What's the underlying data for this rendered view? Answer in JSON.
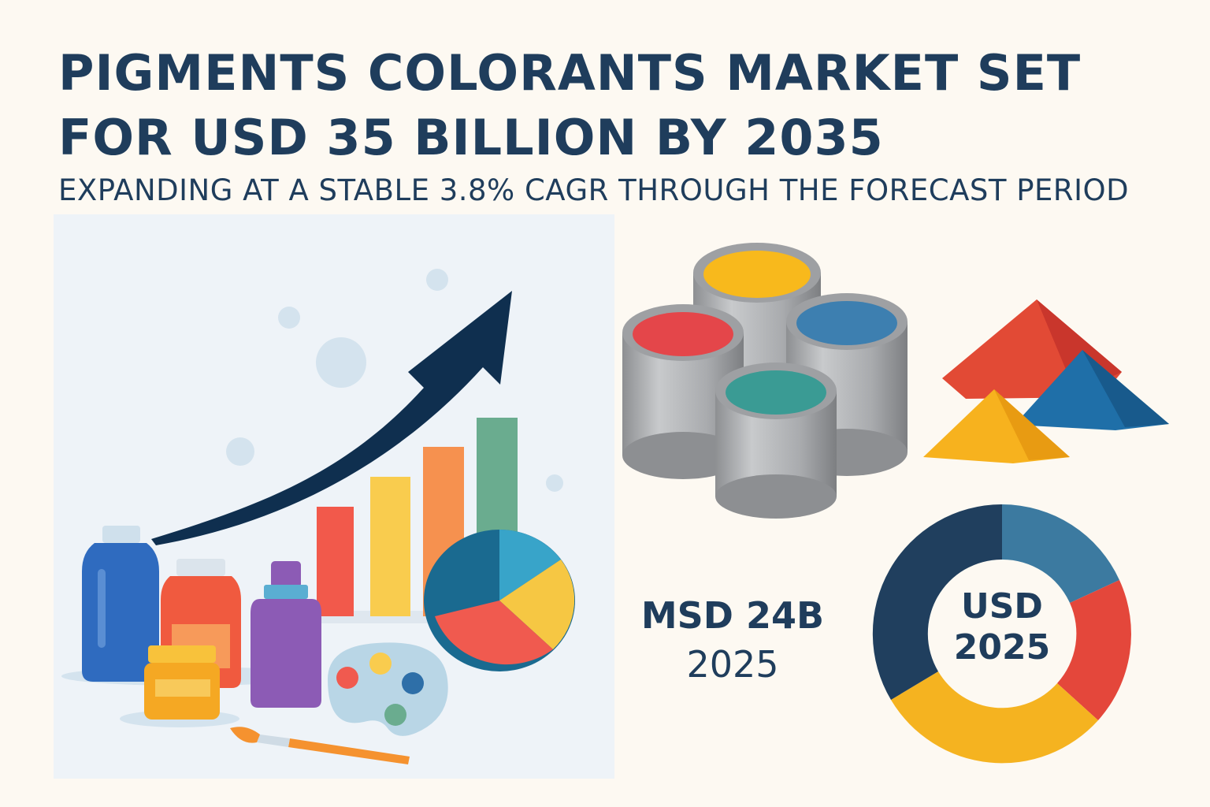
{
  "header": {
    "title_line1": "PIGMENTS COLORANTS MARKET SET",
    "title_line2": "FOR USD 35 BILLION BY 2035",
    "subtitle": "EXPANDING AT A STABLE 3.8% CAGR THROUGH THE FORECAST PERIOD"
  },
  "stat": {
    "value": "MSD 24B",
    "year": "2025"
  },
  "donut": {
    "label_line1": "USD",
    "label_line2": "2025"
  },
  "icons": {
    "growth": "growth-arrow-icon",
    "bars": "bar-chart-icon",
    "pie": "pie-chart-icon",
    "bottles": "paint-bottles-icon",
    "palette": "palette-icon",
    "brush": "paintbrush-icon",
    "cans": "paint-cans-icon",
    "powder": "pigment-powder-icon"
  },
  "colors": {
    "navy": "#1f3d5c",
    "red": "#e4473b",
    "yellow": "#f5b320",
    "blue": "#2e6fa8",
    "teal": "#3a9b94",
    "green": "#6aac8f",
    "orange": "#f39350"
  }
}
